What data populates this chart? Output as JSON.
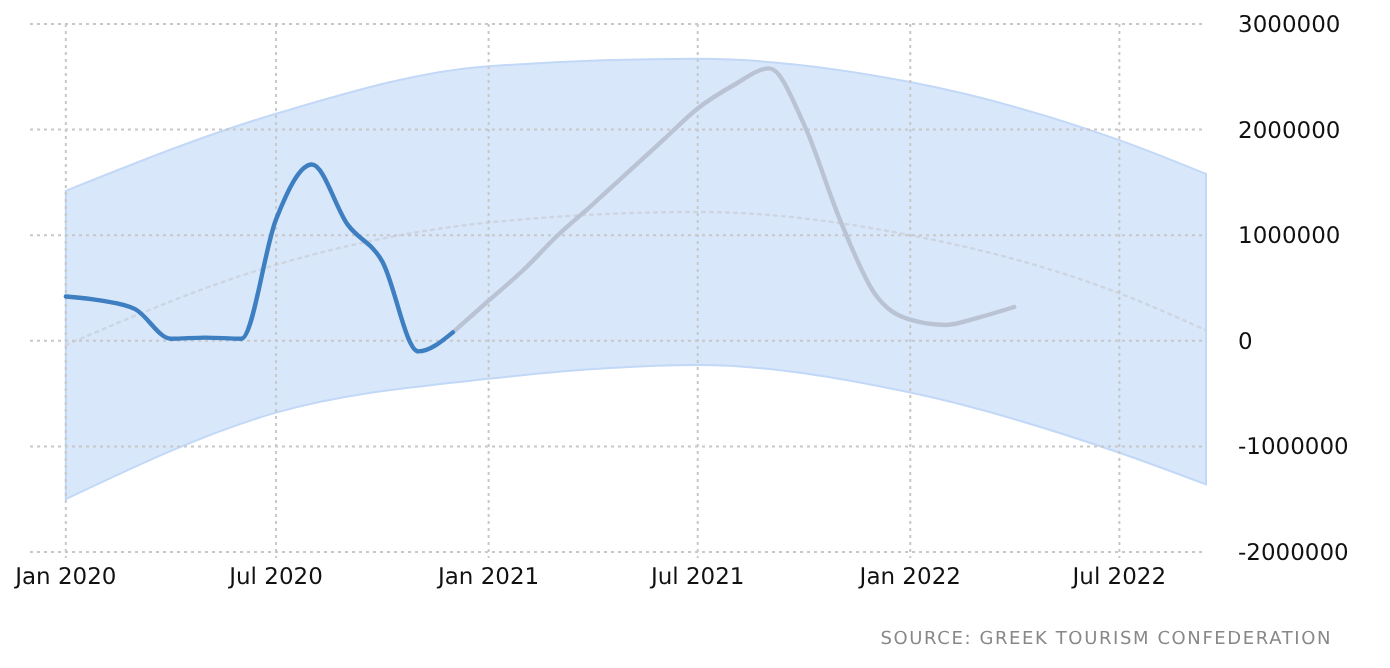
{
  "chart_data": {
    "type": "line",
    "xlim": [
      "2019-12-01",
      "2022-09-14"
    ],
    "ylim": [
      -2000000,
      3000000
    ],
    "yticks": [
      -2000000,
      -1000000,
      0,
      1000000,
      2000000,
      3000000
    ],
    "xticks": [
      {
        "value": "2020-01",
        "label": "Jan 2020"
      },
      {
        "value": "2020-07",
        "label": "Jul 2020"
      },
      {
        "value": "2021-01",
        "label": "Jan 2021"
      },
      {
        "value": "2021-07",
        "label": "Jul 2021"
      },
      {
        "value": "2022-01",
        "label": "Jan 2022"
      },
      {
        "value": "2022-07",
        "label": "Jul 2022"
      }
    ],
    "grid": true,
    "annotations": [
      "SOURCE: GREEK TOURISM CONFEDERATION"
    ],
    "series": [
      {
        "color": "#cdd5e0",
        "line_style": "dotted",
        "x": [
          "2020-01",
          "2020-07",
          "2021-01",
          "2021-07",
          "2022-01",
          "2022-07",
          "2022-09-14"
        ],
        "values": [
          -40000,
          720000,
          1120000,
          1220000,
          1000000,
          450000,
          100000
        ],
        "lower": [
          -1500000,
          -680000,
          -360000,
          -230000,
          -490000,
          -1060000,
          -1360000
        ],
        "upper": [
          1420000,
          2150000,
          2600000,
          2670000,
          2450000,
          1900000,
          1580000
        ]
      },
      {
        "color": "#b9c3d3",
        "line_style": "solid",
        "x": [
          "2020-12",
          "2021-01",
          "2021-02",
          "2021-03",
          "2021-04",
          "2021-05",
          "2021-06",
          "2021-07",
          "2021-08",
          "2021-09",
          "2021-10",
          "2021-11",
          "2021-12",
          "2022-01",
          "2022-02",
          "2022-03",
          "2022-04"
        ],
        "values": [
          80000,
          380000,
          680000,
          990000,
          1290000,
          1590000,
          1900000,
          2200000,
          2420000,
          2580000,
          2050000,
          1150000,
          450000,
          200000,
          150000,
          220000,
          320000
        ]
      },
      {
        "color": "#3d7fc1",
        "line_style": "solid",
        "x": [
          "2020-01",
          "2020-02",
          "2020-03",
          "2020-04",
          "2020-05",
          "2020-06",
          "2020-07",
          "2020-08",
          "2020-09",
          "2020-10",
          "2020-11",
          "2020-12"
        ],
        "values": [
          420000,
          380000,
          300000,
          20000,
          30000,
          20000,
          1150000,
          1670000,
          1100000,
          750000,
          -100000,
          80000
        ]
      }
    ]
  }
}
